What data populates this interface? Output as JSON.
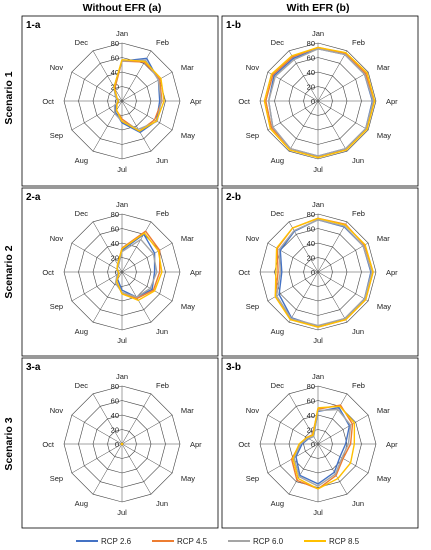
{
  "figure": {
    "column_headers": [
      "Without EFR (a)",
      "With EFR (b)"
    ],
    "row_headers": [
      "Scenario 1",
      "Scenario 2",
      "Scenario 3"
    ]
  },
  "colors": {
    "RCP 2.6": "#4472C4",
    "RCP 4.5": "#ED7D31",
    "RCP 6.0": "#A5A5A5",
    "RCP 8.5": "#FFC000"
  },
  "chart_data": {
    "type": "radar",
    "categories": [
      "Jan",
      "Feb",
      "Mar",
      "Apr",
      "May",
      "Jun",
      "Jul",
      "Aug",
      "Sep",
      "Oct",
      "Nov",
      "Dec"
    ],
    "ticks": [
      "0",
      "20",
      "40",
      "60",
      "80"
    ],
    "rlim": [
      0,
      80
    ],
    "legend": {
      "position": "bottom",
      "entries": [
        "RCP 2.6",
        "RCP 4.5",
        "RCP 6.0",
        "RCP 8.5"
      ]
    },
    "panels": [
      {
        "label": "1-a",
        "series": [
          {
            "name": "RCP 2.6",
            "values": [
              55,
              68,
              58,
              52,
              55,
              50,
              30,
              18,
              10,
              5,
              10,
              22
            ]
          },
          {
            "name": "RCP 4.5",
            "values": [
              55,
              62,
              60,
              55,
              52,
              48,
              25,
              15,
              8,
              5,
              8,
              20
            ]
          },
          {
            "name": "RCP 6.0",
            "values": [
              55,
              65,
              58,
              54,
              56,
              45,
              28,
              20,
              12,
              5,
              10,
              22
            ]
          },
          {
            "name": "RCP 8.5",
            "values": [
              57,
              63,
              62,
              58,
              55,
              48,
              28,
              15,
              8,
              5,
              8,
              22
            ]
          }
        ]
      },
      {
        "label": "1-b",
        "series": [
          {
            "name": "RCP 2.6",
            "values": [
              72,
              74,
              74,
              75,
              76,
              76,
              76,
              76,
              72,
              68,
              70,
              68
            ]
          },
          {
            "name": "RCP 4.5",
            "values": [
              74,
              76,
              76,
              77,
              77,
              77,
              77,
              76,
              74,
              72,
              72,
              70
            ]
          },
          {
            "name": "RCP 6.0",
            "values": [
              72,
              74,
              74,
              76,
              76,
              76,
              76,
              76,
              72,
              68,
              68,
              66
            ]
          },
          {
            "name": "RCP 8.5",
            "values": [
              74,
              77,
              78,
              78,
              78,
              78,
              78,
              78,
              76,
              74,
              74,
              72
            ]
          }
        ]
      },
      {
        "label": "2-a",
        "series": [
          {
            "name": "RCP 2.6",
            "values": [
              30,
              60,
              52,
              45,
              48,
              40,
              25,
              12,
              8,
              5,
              8,
              10
            ]
          },
          {
            "name": "RCP 4.5",
            "values": [
              33,
              65,
              60,
              52,
              50,
              42,
              30,
              15,
              5,
              5,
              8,
              12
            ]
          },
          {
            "name": "RCP 6.0",
            "values": [
              28,
              52,
              50,
              48,
              45,
              40,
              28,
              18,
              8,
              5,
              8,
              10
            ]
          },
          {
            "name": "RCP 8.5",
            "values": [
              32,
              62,
              58,
              55,
              52,
              45,
              30,
              15,
              5,
              5,
              8,
              12
            ]
          }
        ]
      },
      {
        "label": "2-b",
        "series": [
          {
            "name": "RCP 2.6",
            "values": [
              72,
              72,
              72,
              73,
              74,
              74,
              75,
              73,
              62,
              50,
              60,
              65
            ]
          },
          {
            "name": "RCP 4.5",
            "values": [
              74,
              76,
              74,
              76,
              76,
              76,
              76,
              75,
              68,
              55,
              65,
              70
            ]
          },
          {
            "name": "RCP 6.0",
            "values": [
              72,
              73,
              72,
              74,
              74,
              74,
              74,
              74,
              66,
              52,
              62,
              66
            ]
          },
          {
            "name": "RCP 8.5",
            "values": [
              74,
              75,
              75,
              76,
              76,
              76,
              76,
              76,
              68,
              58,
              66,
              70
            ]
          }
        ]
      },
      {
        "label": "3-a",
        "series": [
          {
            "name": "RCP 2.6",
            "values": [
              0,
              0,
              0,
              0,
              0,
              0,
              0,
              0,
              0,
              0,
              0,
              0
            ]
          },
          {
            "name": "RCP 4.5",
            "values": [
              0,
              0,
              0,
              0,
              0,
              0,
              0,
              0,
              0,
              0,
              0,
              0
            ]
          },
          {
            "name": "RCP 6.0",
            "values": [
              0,
              0,
              0,
              0,
              0,
              0,
              0,
              0,
              0,
              0,
              0,
              0
            ]
          },
          {
            "name": "RCP 8.5",
            "values": [
              0,
              0,
              0,
              0,
              0,
              0,
              0,
              0,
              0,
              0,
              0,
              0
            ]
          }
        ]
      },
      {
        "label": "3-b",
        "series": [
          {
            "name": "RCP 2.6",
            "values": [
              45,
              58,
              50,
              38,
              35,
              45,
              55,
              50,
              35,
              22,
              15,
              12
            ]
          },
          {
            "name": "RCP 4.5",
            "values": [
              48,
              62,
              55,
              45,
              40,
              50,
              62,
              58,
              42,
              25,
              18,
              15
            ]
          },
          {
            "name": "RCP 6.0",
            "values": [
              46,
              55,
              52,
              42,
              38,
              48,
              58,
              52,
              38,
              24,
              16,
              12
            ]
          },
          {
            "name": "RCP 8.5",
            "values": [
              50,
              60,
              58,
              50,
              52,
              55,
              62,
              55,
              40,
              26,
              18,
              14
            ]
          }
        ]
      }
    ]
  }
}
